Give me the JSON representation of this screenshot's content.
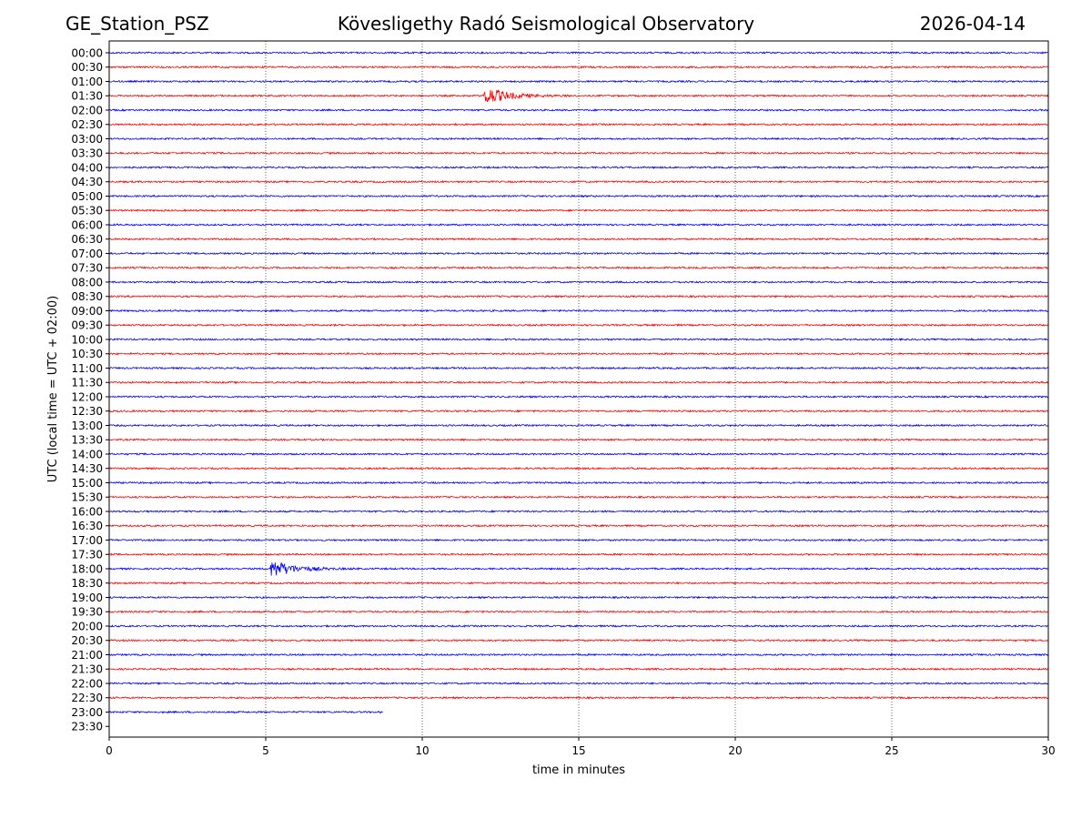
{
  "header": {
    "station": "GE_Station_PSZ",
    "observatory": "Kövesligethy Radó Seismological Observatory",
    "date": "2026-04-14"
  },
  "chart_data": {
    "type": "line",
    "title": "Kövesligethy Radó Seismological Observatory",
    "xlabel": "time in minutes",
    "ylabel": "UTC (local time = UTC + 02:00)",
    "xlim": [
      0,
      30
    ],
    "xticks": [
      0,
      5,
      10,
      15,
      20,
      25,
      30
    ],
    "grid": "vertical dotted at x ticks",
    "row_labels": [
      "00:00",
      "00:30",
      "01:00",
      "01:30",
      "02:00",
      "02:30",
      "03:00",
      "03:30",
      "04:00",
      "04:30",
      "05:00",
      "05:30",
      "06:00",
      "06:30",
      "07:00",
      "07:30",
      "08:00",
      "08:30",
      "09:00",
      "09:30",
      "10:00",
      "10:30",
      "11:00",
      "11:30",
      "12:00",
      "12:30",
      "13:00",
      "13:30",
      "14:00",
      "14:30",
      "15:00",
      "15:30",
      "16:00",
      "16:30",
      "17:00",
      "17:30",
      "18:00",
      "18:30",
      "19:00",
      "19:30",
      "20:00",
      "20:30",
      "21:00",
      "21:30",
      "22:00",
      "22:30",
      "23:00",
      "23:30"
    ],
    "colors": [
      "#0000ff",
      "#ff0000"
    ],
    "last_trace": {
      "row": "23:00",
      "end_minute": 8.75
    },
    "events": [
      {
        "row": "01:30",
        "start_minute": 11.95,
        "end_minute": 15.0,
        "color": "#ff0000"
      },
      {
        "row": "18:00",
        "start_minute": 5.15,
        "end_minute": 8.0,
        "color": "#0000ff"
      }
    ]
  }
}
